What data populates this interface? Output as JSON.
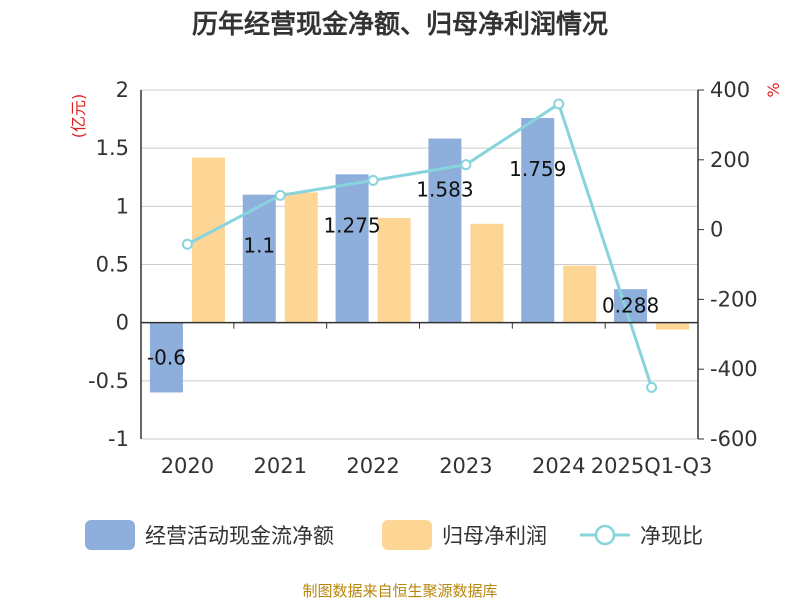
{
  "chart_data": {
    "type": "bar",
    "title": "历年经营现金净额、归母净利润情况",
    "categories": [
      "2020",
      "2021",
      "2022",
      "2023",
      "2024",
      "2025Q1-Q3"
    ],
    "series": [
      {
        "name": "经营活动现金流净额",
        "axis": "left",
        "type": "bar",
        "color": "#8eaedb",
        "values": [
          -0.6,
          1.1,
          1.275,
          1.583,
          1.759,
          0.288
        ],
        "labels": [
          "-0.6",
          "1.1",
          "1.275",
          "1.583",
          "1.759",
          "0.288"
        ]
      },
      {
        "name": "归母净利润",
        "axis": "left",
        "type": "bar",
        "color": "#fdd696",
        "values": [
          1.42,
          1.12,
          0.9,
          0.85,
          0.49,
          -0.06
        ]
      },
      {
        "name": "净现比",
        "axis": "right",
        "type": "line",
        "color": "#88d4dc",
        "values": [
          -42,
          98,
          141,
          186,
          360,
          -452
        ]
      }
    ],
    "left_axis": {
      "unit": "(亿元)",
      "ylim": [
        -1,
        2
      ],
      "ticks": [
        -1,
        -0.5,
        0,
        0.5,
        1,
        1.5,
        2
      ],
      "tick_labels": [
        "-1",
        "-0.5",
        "0",
        "0.5",
        "1",
        "1.5",
        "2"
      ]
    },
    "right_axis": {
      "unit": "%",
      "ylim": [
        -600,
        400
      ],
      "ticks": [
        -600,
        -400,
        -200,
        0,
        200,
        400
      ],
      "tick_labels": [
        "-600",
        "-400",
        "-200",
        "0",
        "200",
        "400"
      ]
    },
    "grid": true,
    "legend_position": "bottom"
  },
  "source": "制图数据来自恒生聚源数据库"
}
